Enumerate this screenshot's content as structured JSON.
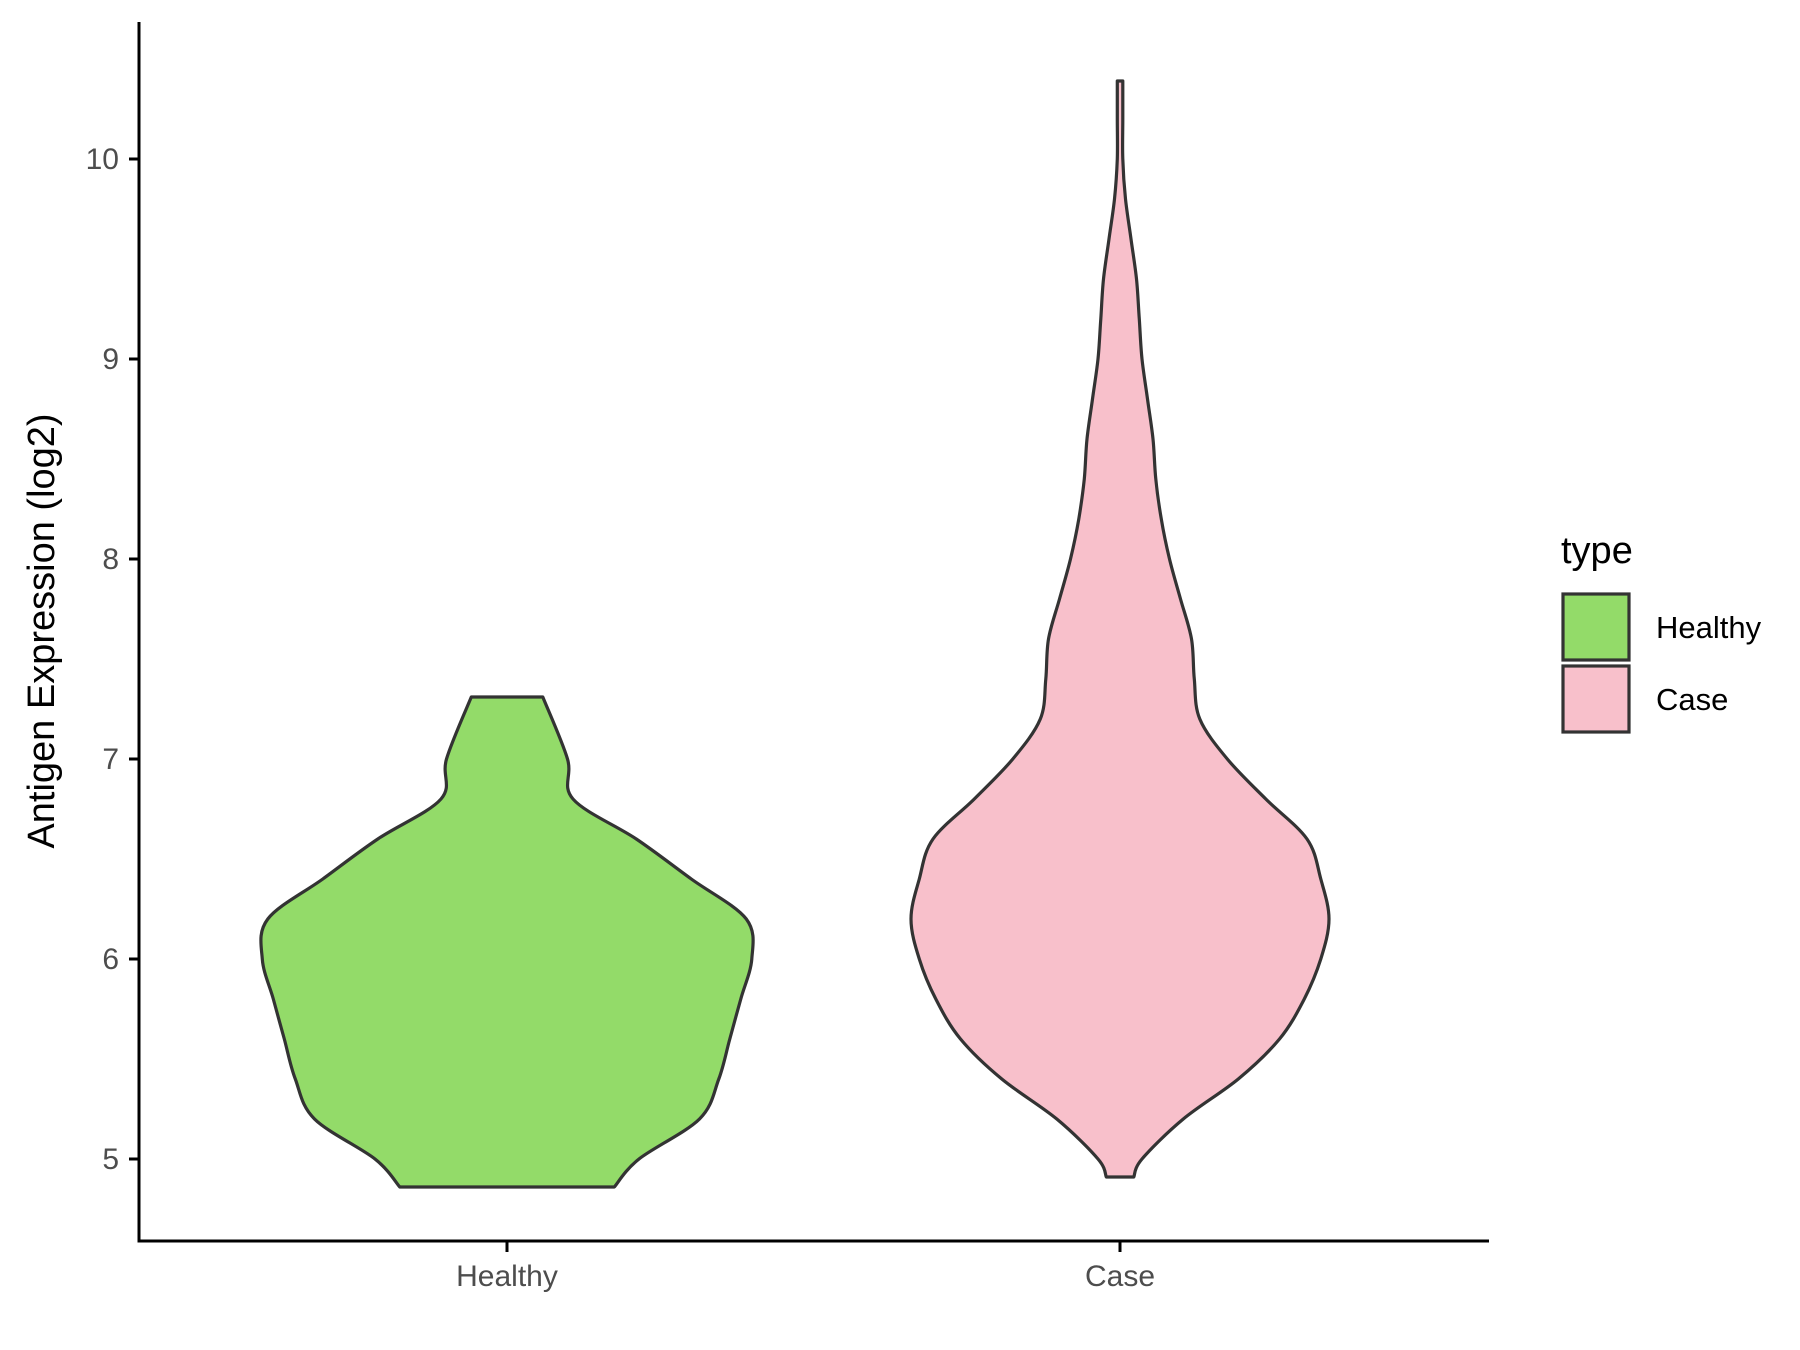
{
  "chart_data": {
    "type": "violin",
    "title": "",
    "xlabel": "",
    "ylabel": "Antigen Expression (log2)",
    "ylim": [
      4.6,
      10.65
    ],
    "yticks": [
      5,
      6,
      7,
      8,
      9,
      10
    ],
    "categories": [
      "Healthy",
      "Case"
    ],
    "grid": false,
    "legend": {
      "title": "type",
      "position": "right",
      "entries": [
        {
          "label": "Healthy",
          "color": "#93DB69"
        },
        {
          "label": "Case",
          "color": "#F8C0CB"
        }
      ]
    },
    "series": [
      {
        "category": "Healthy",
        "color": "#93DB69",
        "y_min": 4.86,
        "y_max": 7.31,
        "profile": [
          [
            4.86,
            0.39
          ],
          [
            5.0,
            0.48
          ],
          [
            5.2,
            0.7
          ],
          [
            5.4,
            0.77
          ],
          [
            5.6,
            0.81
          ],
          [
            5.8,
            0.85
          ],
          [
            6.0,
            0.89
          ],
          [
            6.2,
            0.87
          ],
          [
            6.4,
            0.67
          ],
          [
            6.6,
            0.47
          ],
          [
            6.8,
            0.24
          ],
          [
            7.0,
            0.22
          ],
          [
            7.31,
            0.13
          ]
        ]
      },
      {
        "category": "Case",
        "color": "#F8C0CB",
        "y_min": 4.91,
        "y_max": 10.39,
        "profile": [
          [
            4.91,
            0.05
          ],
          [
            5.0,
            0.08
          ],
          [
            5.2,
            0.23
          ],
          [
            5.4,
            0.43
          ],
          [
            5.6,
            0.58
          ],
          [
            5.8,
            0.67
          ],
          [
            6.0,
            0.73
          ],
          [
            6.2,
            0.76
          ],
          [
            6.4,
            0.73
          ],
          [
            6.6,
            0.68
          ],
          [
            6.8,
            0.53
          ],
          [
            7.0,
            0.39
          ],
          [
            7.2,
            0.29
          ],
          [
            7.4,
            0.27
          ],
          [
            7.6,
            0.26
          ],
          [
            7.8,
            0.22
          ],
          [
            8.0,
            0.18
          ],
          [
            8.2,
            0.15
          ],
          [
            8.4,
            0.13
          ],
          [
            8.6,
            0.12
          ],
          [
            8.8,
            0.1
          ],
          [
            9.0,
            0.08
          ],
          [
            9.2,
            0.07
          ],
          [
            9.4,
            0.06
          ],
          [
            9.6,
            0.04
          ],
          [
            9.8,
            0.02
          ],
          [
            10.0,
            0.01
          ],
          [
            10.2,
            0.01
          ],
          [
            10.39,
            0.01
          ]
        ]
      }
    ]
  }
}
